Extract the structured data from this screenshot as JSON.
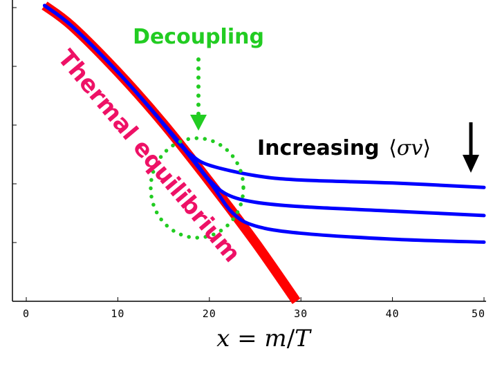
{
  "chart_data": {
    "type": "line",
    "xlabel": "x = m/T",
    "ylabel": "",
    "xlim": [
      0,
      50
    ],
    "ylim": [
      0,
      1
    ],
    "x_ticks": [
      0,
      10,
      20,
      30,
      40,
      50
    ],
    "grid": false,
    "series": [
      {
        "name": "Thermal equilibrium",
        "color": "#ff0000",
        "points": [
          [
            2,
            1.0
          ],
          [
            5,
            0.93
          ],
          [
            10,
            0.775
          ],
          [
            15,
            0.6
          ],
          [
            20,
            0.405
          ],
          [
            25,
            0.2
          ],
          [
            29.5,
            0.0
          ]
        ]
      },
      {
        "color": "#0000ff",
        "points": [
          [
            2,
            1.0
          ],
          [
            5,
            0.93
          ],
          [
            10,
            0.775
          ],
          [
            14,
            0.635
          ],
          [
            16.5,
            0.54
          ],
          [
            18,
            0.495
          ],
          [
            20,
            0.46
          ],
          [
            25,
            0.425
          ],
          [
            30,
            0.41
          ],
          [
            40,
            0.4
          ],
          [
            50,
            0.385
          ]
        ]
      },
      {
        "color": "#0000ff",
        "points": [
          [
            2,
            1.0
          ],
          [
            5,
            0.93
          ],
          [
            10,
            0.775
          ],
          [
            15,
            0.6
          ],
          [
            18,
            0.49
          ],
          [
            20,
            0.41
          ],
          [
            22,
            0.36
          ],
          [
            25,
            0.335
          ],
          [
            30,
            0.32
          ],
          [
            40,
            0.305
          ],
          [
            50,
            0.29
          ]
        ]
      },
      {
        "color": "#0000ff",
        "points": [
          [
            2,
            1.0
          ],
          [
            5,
            0.93
          ],
          [
            10,
            0.775
          ],
          [
            15,
            0.6
          ],
          [
            20,
            0.405
          ],
          [
            22.5,
            0.3
          ],
          [
            25,
            0.255
          ],
          [
            30,
            0.23
          ],
          [
            40,
            0.21
          ],
          [
            50,
            0.2
          ]
        ]
      }
    ],
    "annotations": {
      "decoupling": "Decoupling",
      "thermal": "Thermal equilibrium",
      "increasing": "Increasing"
    },
    "colors": {
      "equilibrium": "#ff0000",
      "curves": "#0000ff",
      "decoupling": "#22cc22",
      "thermal_text": "#ee1166",
      "axis": "#000000"
    }
  }
}
